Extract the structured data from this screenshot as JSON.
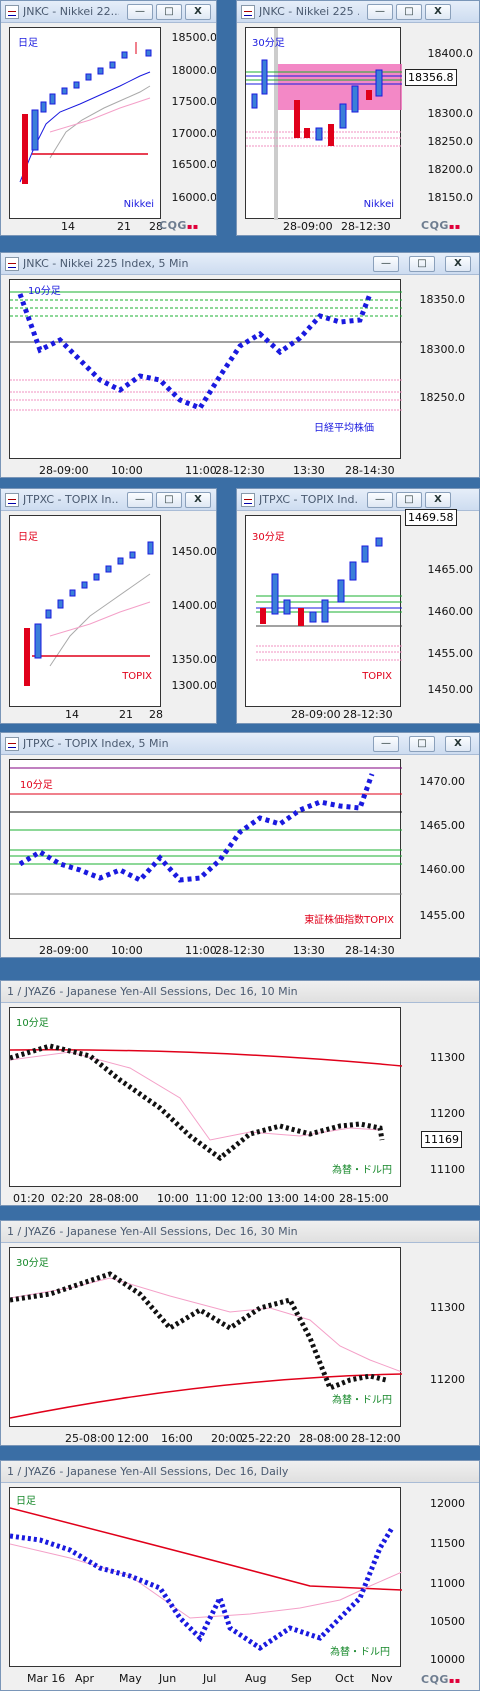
{
  "windows": [
    {
      "id": "w1",
      "title": "JNKC - Nikkei 22...",
      "period": "日足",
      "index_label": "Nikkei",
      "yticks": [
        "18500.0",
        "18000.0",
        "17500.0",
        "17000.0",
        "16500.0",
        "16000.0"
      ],
      "xticks": [
        "14",
        "21",
        "28"
      ],
      "colors": {
        "label": "#1a1adf",
        "index": "#1a1adf"
      }
    },
    {
      "id": "w2",
      "title": "JNKC - Nikkei 225 ...",
      "period": "30分足",
      "index_label": "Nikkei",
      "yticks": [
        "18400.0",
        "18300.0",
        "18250.0",
        "18200.0",
        "18150.0"
      ],
      "price": "18356.8",
      "xticks": [
        "28-09:00",
        "28-12:30"
      ]
    },
    {
      "id": "w3",
      "title": "JNKC - Nikkei 225 Index, 5 Min",
      "period": "10分足",
      "index_label": "日経平均株価",
      "yticks": [
        "18350.0",
        "18300.0",
        "18250.0"
      ],
      "xticks": [
        "28-09:00",
        "10:00",
        "11:00",
        "28-12:30",
        "13:30",
        "28-14:30"
      ]
    },
    {
      "id": "w4",
      "title": "JTPXC - TOPIX In...",
      "period": "日足",
      "index_label": "TOPIX",
      "yticks": [
        "1450.00",
        "1400.00",
        "1350.00",
        "1300.00"
      ],
      "xticks": [
        "14",
        "21",
        "28"
      ]
    },
    {
      "id": "w5",
      "title": "JTPXC - TOPIX Ind...",
      "period": "30分足",
      "index_label": "TOPIX",
      "yticks": [
        "1465.00",
        "1460.00",
        "1455.00",
        "1450.00"
      ],
      "price": "1469.58",
      "xticks": [
        "28-09:00",
        "28-12:30"
      ]
    },
    {
      "id": "w6",
      "title": "JTPXC - TOPIX Index, 5 Min",
      "period": "10分足",
      "index_label": "東証株価指数TOPIX",
      "yticks": [
        "1470.00",
        "1465.00",
        "1460.00",
        "1455.00"
      ],
      "xticks": [
        "28-09:00",
        "10:00",
        "11:00",
        "28-12:30",
        "13:30",
        "28-14:30"
      ]
    },
    {
      "id": "w7",
      "title": "1 / JYAZ6 - Japanese Yen-All Sessions, Dec 16, 10 Min",
      "period": "10分足",
      "index_label": "為替・ドル円",
      "yticks": [
        "11300",
        "11200",
        "11100"
      ],
      "price": "11169",
      "xticks": [
        "01:20",
        "02:20",
        "28-08:00",
        "10:00",
        "11:00",
        "12:00",
        "13:00",
        "14:00",
        "28-15:00"
      ]
    },
    {
      "id": "w8",
      "title": "1 / JYAZ6 - Japanese Yen-All Sessions, Dec 16, 30 Min",
      "period": "30分足",
      "index_label": "為替・ドル円",
      "yticks": [
        "11300",
        "11200"
      ],
      "xticks": [
        "25-08:00",
        "12:00",
        "16:00",
        "20:00",
        "25-22:20",
        "28-08:00",
        "28-12:00"
      ]
    },
    {
      "id": "w9",
      "title": "1 / JYAZ6 - Japanese Yen-All Sessions, Dec 16, Daily",
      "period": "日足",
      "index_label": "為替・ドル円",
      "yticks": [
        "12000",
        "11500",
        "11000",
        "10500",
        "10000"
      ],
      "xticks": [
        "Mar 16",
        "Apr",
        "May",
        "Jun",
        "Jul",
        "Aug",
        "Sep",
        "Oct",
        "Nov"
      ]
    }
  ],
  "buttons": {
    "minimize": "—",
    "restore": "□",
    "close": "X"
  },
  "logo": "CQG"
}
